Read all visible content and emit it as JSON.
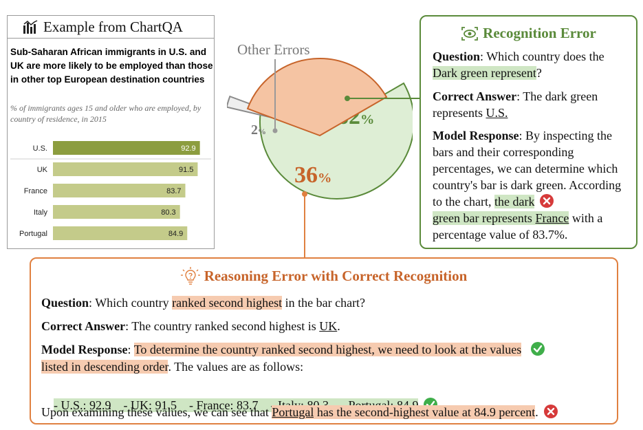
{
  "example_header": "Example from ChartQA",
  "chart_data": {
    "type": "bar",
    "title": "Sub-Saharan African immigrants in U.S. and UK are more likely to be employed than those in other top European destination countries",
    "subtitle": "% of immigrants ages 15 and older who are employed, by country of residence, in 2015",
    "categories": [
      "U.S.",
      "UK",
      "France",
      "Italy",
      "Portugal"
    ],
    "values": [
      92.9,
      91.5,
      83.7,
      80.3,
      84.9
    ],
    "colors": [
      "#8c9d3f",
      "#c4cb8a",
      "#c4cb8a",
      "#c4cb8a",
      "#c4cb8a"
    ]
  },
  "pie": {
    "slices": [
      {
        "label": "62",
        "value": 62,
        "color": "#deeed5",
        "stroke": "#5a8a3a",
        "text_color": "#5a8a3a"
      },
      {
        "label": "2",
        "value": 2,
        "color": "#eeeeee",
        "stroke": "#8a8a8a",
        "text_color": "#777777"
      },
      {
        "label": "36",
        "value": 36,
        "color": "#f5c4a3",
        "stroke": "#c7642a",
        "text_color": "#c7642a"
      }
    ],
    "percent_sign": "%",
    "other_errors_label": "Other Errors"
  },
  "recognition": {
    "title": "Recognition Error",
    "q_label": "Question",
    "q_text_1": ": Which country does the ",
    "q_hl": "Dark green represent",
    "q_text_2": "?",
    "a_label": "Correct Answer",
    "a_text": ": The dark green represents ",
    "a_ul": "U.S.",
    "r_label": "Model Response",
    "r_text_1": ": By inspecting the bars and their corresponding percentages, we can determine which country's bar is dark green. According to the chart, ",
    "r_hl_1": "the dark",
    "r_hl_2": "green bar represents ",
    "r_hl_ul": "France",
    "r_text_2": " with a percentage value of 83.7%."
  },
  "reasoning": {
    "title": "Reasoning Error with Correct Recognition",
    "q_label": "Question",
    "q_text_1": ": Which country ",
    "q_hl": "ranked second highest",
    "q_text_2": " in the bar chart?",
    "a_label": "Correct Answer",
    "a_text": ": The country ranked second highest is ",
    "a_ul": "UK",
    "a_text_2": ".",
    "r_label": "Model Response",
    "r_text_colon": ": ",
    "r_hl_1": "To determine the country ranked second highest, we need to look at the values",
    "r_hl_2": "listed in descending order",
    "r_text_2": ". The values are as follows:",
    "values_line": "- U.S.: 92.9    - UK: 91.5    - France: 83.7    - Italy: 80.3    - Portugal: 84.9",
    "conclusion_1": "Upon examining these values, we can see that ",
    "conclusion_ul": "Portugal",
    "conclusion_hl": " has the second-highest value at 84.9 percent",
    "conclusion_2": "."
  }
}
